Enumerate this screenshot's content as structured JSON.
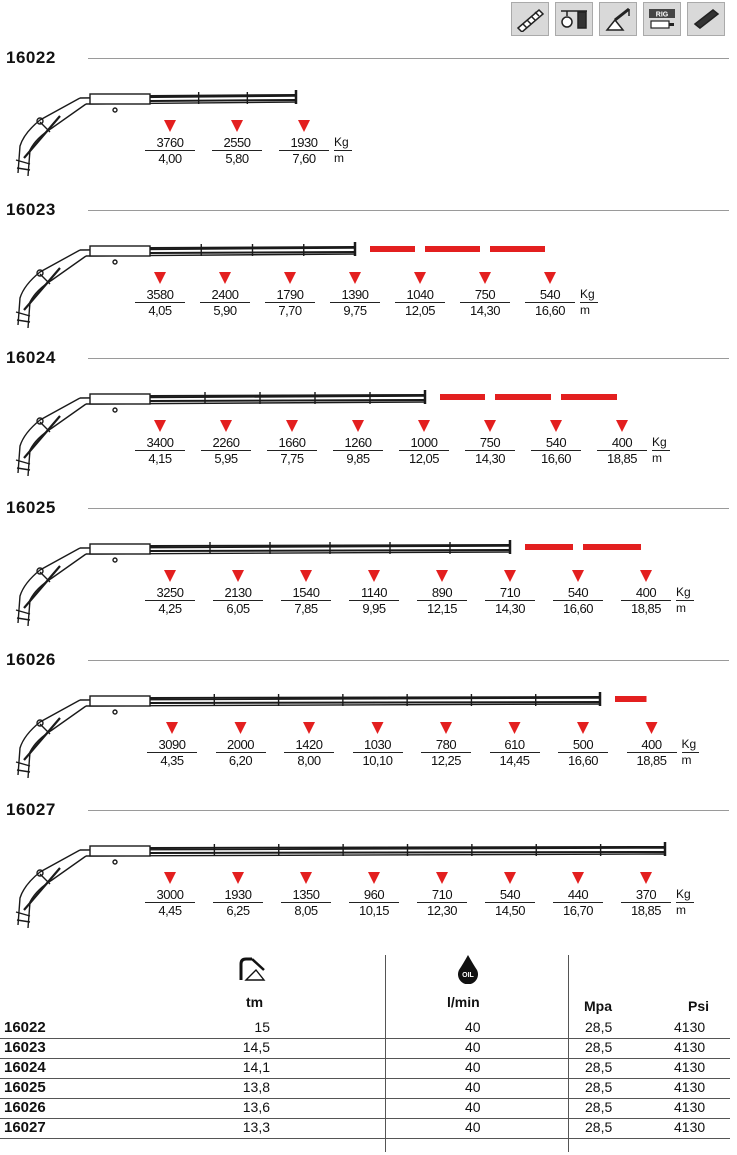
{
  "header_icons": [
    "boom-section-icon",
    "crane-hook-icon",
    "slewing-crane-icon",
    "rig-icon",
    "extension-icon"
  ],
  "header_icon_text": {
    "rig": "RIG"
  },
  "units": {
    "load": "Kg",
    "reach": "m"
  },
  "colors": {
    "red": "#e31f1f",
    "line": "#1a1a1a"
  },
  "models": [
    {
      "name": "16022",
      "marks": [
        {
          "kg": "3760",
          "m": "4,00"
        },
        {
          "kg": "2550",
          "m": "5,80"
        },
        {
          "kg": "1930",
          "m": "7,60"
        }
      ],
      "jib_marks": 0
    },
    {
      "name": "16023",
      "marks": [
        {
          "kg": "3580",
          "m": "4,05"
        },
        {
          "kg": "2400",
          "m": "5,90"
        },
        {
          "kg": "1790",
          "m": "7,70"
        },
        {
          "kg": "1390",
          "m": "9,75"
        },
        {
          "kg": "1040",
          "m": "12,05"
        },
        {
          "kg": "750",
          "m": "14,30"
        },
        {
          "kg": "540",
          "m": "16,60"
        }
      ],
      "jib_marks": 3
    },
    {
      "name": "16024",
      "marks": [
        {
          "kg": "3400",
          "m": "4,15"
        },
        {
          "kg": "2260",
          "m": "5,95"
        },
        {
          "kg": "1660",
          "m": "7,75"
        },
        {
          "kg": "1260",
          "m": "9,85"
        },
        {
          "kg": "1000",
          "m": "12,05"
        },
        {
          "kg": "750",
          "m": "14,30"
        },
        {
          "kg": "540",
          "m": "16,60"
        },
        {
          "kg": "400",
          "m": "18,85"
        }
      ],
      "jib_marks": 3
    },
    {
      "name": "16025",
      "marks": [
        {
          "kg": "3250",
          "m": "4,25"
        },
        {
          "kg": "2130",
          "m": "6,05"
        },
        {
          "kg": "1540",
          "m": "7,85"
        },
        {
          "kg": "1140",
          "m": "9,95"
        },
        {
          "kg": "890",
          "m": "12,15"
        },
        {
          "kg": "710",
          "m": "14,30"
        },
        {
          "kg": "540",
          "m": "16,60"
        },
        {
          "kg": "400",
          "m": "18,85"
        }
      ],
      "jib_marks": 2
    },
    {
      "name": "16026",
      "marks": [
        {
          "kg": "3090",
          "m": "4,35"
        },
        {
          "kg": "2000",
          "m": "6,20"
        },
        {
          "kg": "1420",
          "m": "8,00"
        },
        {
          "kg": "1030",
          "m": "10,10"
        },
        {
          "kg": "780",
          "m": "12,25"
        },
        {
          "kg": "610",
          "m": "14,45"
        },
        {
          "kg": "500",
          "m": "16,60"
        },
        {
          "kg": "400",
          "m": "18,85"
        }
      ],
      "jib_marks": 1
    },
    {
      "name": "16027",
      "marks": [
        {
          "kg": "3000",
          "m": "4,45"
        },
        {
          "kg": "1930",
          "m": "6,25"
        },
        {
          "kg": "1350",
          "m": "8,05"
        },
        {
          "kg": "960",
          "m": "10,15"
        },
        {
          "kg": "710",
          "m": "12,30"
        },
        {
          "kg": "540",
          "m": "14,50"
        },
        {
          "kg": "440",
          "m": "16,70"
        },
        {
          "kg": "370",
          "m": "18,85"
        }
      ],
      "jib_marks": 0
    }
  ],
  "table": {
    "headers": {
      "tm": "tm",
      "flow": "l/min",
      "mpa": "Mpa",
      "psi": "Psi"
    },
    "flow_icon_text": "OIL",
    "rows": [
      {
        "model": "16022",
        "tm": "15",
        "flow": "40",
        "mpa": "28,5",
        "psi": "4130"
      },
      {
        "model": "16023",
        "tm": "14,5",
        "flow": "40",
        "mpa": "28,5",
        "psi": "4130"
      },
      {
        "model": "16024",
        "tm": "14,1",
        "flow": "40",
        "mpa": "28,5",
        "psi": "4130"
      },
      {
        "model": "16025",
        "tm": "13,8",
        "flow": "40",
        "mpa": "28,5",
        "psi": "4130"
      },
      {
        "model": "16026",
        "tm": "13,6",
        "flow": "40",
        "mpa": "28,5",
        "psi": "4130"
      },
      {
        "model": "16027",
        "tm": "13,3",
        "flow": "40",
        "mpa": "28,5",
        "psi": "4130"
      }
    ]
  }
}
